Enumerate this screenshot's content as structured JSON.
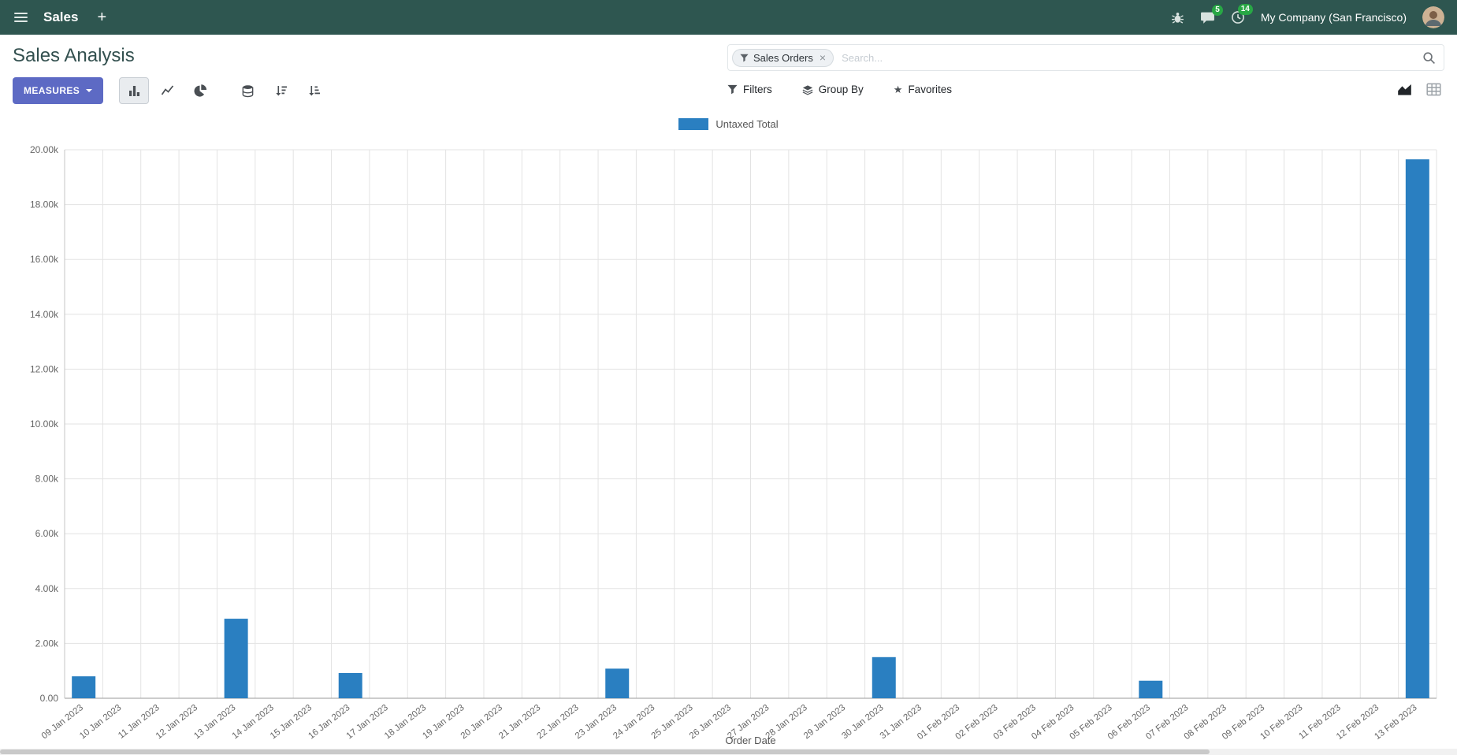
{
  "navbar": {
    "app_name": "Sales",
    "plus_label": "+",
    "messages_badge": "5",
    "activities_badge": "14",
    "company": "My Company (San Francisco)"
  },
  "control_panel": {
    "title": "Sales Analysis",
    "measures_label": "MEASURES",
    "search": {
      "facet": "Sales Orders",
      "facet_remove": "×",
      "placeholder": "Search..."
    },
    "filters_label": "Filters",
    "group_by_label": "Group By",
    "favorites_label": "Favorites"
  },
  "icons": {
    "star_glyph": "★"
  },
  "chart_data": {
    "type": "bar",
    "series_name": "Untaxed Total",
    "bar_color": "#2a7fc1",
    "xlabel": "Order Date",
    "ylabel": "",
    "ylim": [
      0,
      20000
    ],
    "ytick_step": 2000,
    "ytick_labels": [
      "0.00",
      "2.00k",
      "4.00k",
      "6.00k",
      "8.00k",
      "10.00k",
      "12.00k",
      "14.00k",
      "16.00k",
      "18.00k",
      "20.00k"
    ],
    "grid": true,
    "legend_position": "top-center",
    "categories": [
      "09 Jan 2023",
      "10 Jan 2023",
      "11 Jan 2023",
      "12 Jan 2023",
      "13 Jan 2023",
      "14 Jan 2023",
      "15 Jan 2023",
      "16 Jan 2023",
      "17 Jan 2023",
      "18 Jan 2023",
      "19 Jan 2023",
      "20 Jan 2023",
      "21 Jan 2023",
      "22 Jan 2023",
      "23 Jan 2023",
      "24 Jan 2023",
      "25 Jan 2023",
      "26 Jan 2023",
      "27 Jan 2023",
      "28 Jan 2023",
      "29 Jan 2023",
      "30 Jan 2023",
      "31 Jan 2023",
      "01 Feb 2023",
      "02 Feb 2023",
      "03 Feb 2023",
      "04 Feb 2023",
      "05 Feb 2023",
      "06 Feb 2023",
      "07 Feb 2023",
      "08 Feb 2023",
      "09 Feb 2023",
      "10 Feb 2023",
      "11 Feb 2023",
      "12 Feb 2023",
      "13 Feb 2023"
    ],
    "values": [
      800,
      0,
      0,
      0,
      2900,
      0,
      0,
      920,
      0,
      0,
      0,
      0,
      0,
      0,
      1080,
      0,
      0,
      0,
      0,
      0,
      0,
      1500,
      0,
      0,
      0,
      0,
      0,
      0,
      640,
      0,
      0,
      0,
      0,
      0,
      0,
      19650
    ]
  }
}
